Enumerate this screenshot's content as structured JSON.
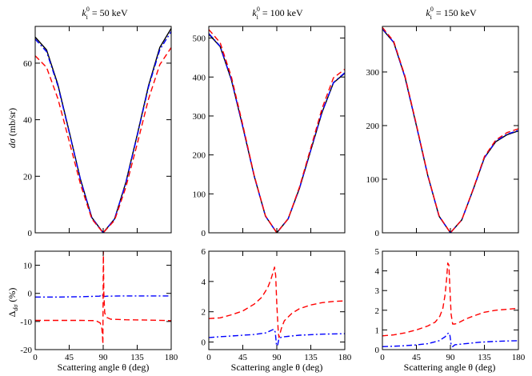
{
  "titles": [
    {
      "sym": "k",
      "sub": "i",
      "sup": "0",
      "text": " = 50 keV"
    },
    {
      "sym": "k",
      "sub": "i",
      "sup": "0",
      "text": " = 100 keV"
    },
    {
      "sym": "k",
      "sub": "i",
      "sup": "0",
      "text": " = 150 keV"
    }
  ],
  "ylabel_top": {
    "sym": "dσ",
    "unit": " (mb/sr)"
  },
  "ylabel_bottom": {
    "sym": "Δ",
    "sub": "dσ",
    "unit": " (%)"
  },
  "xlabel": "Scattering angle θ (deg)",
  "colors": {
    "solid": "#000000",
    "dashed": "#ff0000",
    "dashdot": "#0000ff"
  },
  "chart_data": [
    {
      "type": "line",
      "panel": "top-left",
      "xlim": [
        0,
        180
      ],
      "ylim": [
        0,
        73
      ],
      "xticks": [
        0,
        45,
        90,
        135,
        180
      ],
      "yticks": [
        0,
        20,
        40,
        60
      ],
      "series": [
        {
          "style": "solid",
          "x": [
            0,
            15,
            30,
            45,
            60,
            75,
            90,
            105,
            120,
            135,
            150,
            165,
            180
          ],
          "y": [
            69.2,
            64.7,
            52.5,
            35.8,
            18.8,
            5.4,
            0,
            4.9,
            17.8,
            34.6,
            52.1,
            65.6,
            72.3
          ]
        },
        {
          "style": "dashed",
          "x": [
            0,
            15,
            30,
            45,
            60,
            75,
            90,
            105,
            120,
            135,
            150,
            165,
            180
          ],
          "y": [
            62.6,
            58.5,
            47.5,
            32.4,
            17.1,
            4.9,
            0,
            4.4,
            16.1,
            31.4,
            47.4,
            59.5,
            65.5
          ]
        },
        {
          "style": "dashdot",
          "x": [
            0,
            15,
            30,
            45,
            60,
            75,
            90,
            105,
            120,
            135,
            150,
            165,
            180
          ],
          "y": [
            68.5,
            64.1,
            52.0,
            35.5,
            18.7,
            5.3,
            0,
            4.9,
            17.6,
            34.3,
            51.6,
            64.8,
            71.2
          ]
        }
      ]
    },
    {
      "type": "line",
      "panel": "top-middle",
      "xlim": [
        0,
        180
      ],
      "ylim": [
        0,
        530
      ],
      "xticks": [
        0,
        45,
        90,
        135,
        180
      ],
      "yticks": [
        0,
        100,
        200,
        300,
        400,
        500
      ],
      "series": [
        {
          "style": "solid",
          "x": [
            0,
            15,
            30,
            45,
            60,
            75,
            90,
            105,
            120,
            135,
            150,
            165,
            180
          ],
          "y": [
            510,
            478,
            392,
            272,
            146,
            43,
            0,
            36,
            114,
            212,
            310,
            385,
            410
          ]
        },
        {
          "style": "dashed",
          "x": [
            0,
            15,
            30,
            45,
            60,
            75,
            90,
            105,
            120,
            135,
            150,
            165,
            180
          ],
          "y": [
            522,
            488,
            400,
            277,
            148,
            44,
            0,
            36,
            117,
            218,
            320,
            398,
            420
          ]
        },
        {
          "style": "dashdot",
          "x": [
            0,
            15,
            30,
            45,
            60,
            75,
            90,
            105,
            120,
            135,
            150,
            165,
            180
          ],
          "y": [
            512,
            479,
            393,
            272,
            146,
            43,
            0,
            36,
            114,
            213,
            311,
            386,
            411
          ]
        }
      ]
    },
    {
      "type": "line",
      "panel": "top-right",
      "xlim": [
        0,
        180
      ],
      "ylim": [
        0,
        385
      ],
      "xticks": [
        0,
        45,
        90,
        135,
        180
      ],
      "yticks": [
        0,
        100,
        200,
        300
      ],
      "series": [
        {
          "style": "solid",
          "x": [
            0,
            15,
            30,
            45,
            60,
            75,
            90,
            105,
            120,
            135,
            150,
            165,
            180
          ],
          "y": [
            380,
            355,
            290,
            200,
            107,
            31,
            0,
            24,
            80,
            140,
            170,
            183,
            190
          ]
        },
        {
          "style": "dashed",
          "x": [
            0,
            15,
            30,
            45,
            60,
            75,
            90,
            105,
            120,
            135,
            150,
            165,
            180
          ],
          "y": [
            383,
            357,
            292,
            202,
            108,
            32,
            0,
            24,
            81,
            142,
            173,
            187,
            194
          ]
        },
        {
          "style": "dashdot",
          "x": [
            0,
            15,
            30,
            45,
            60,
            75,
            90,
            105,
            120,
            135,
            150,
            165,
            180
          ],
          "y": [
            381,
            355,
            290,
            200,
            107,
            31,
            0,
            24,
            80,
            140,
            171,
            184,
            191
          ]
        }
      ]
    },
    {
      "type": "line",
      "panel": "bottom-left",
      "xlim": [
        0,
        180
      ],
      "ylim": [
        -20,
        15
      ],
      "xticks": [
        0,
        45,
        90,
        135,
        180
      ],
      "yticks": [
        -20,
        -10,
        0,
        10
      ],
      "series": [
        {
          "style": "dashed",
          "x": [
            0,
            30,
            60,
            80,
            86,
            88,
            89,
            89.6,
            90.2,
            90.8,
            92,
            95,
            100,
            120,
            150,
            180
          ],
          "y": [
            -9.6,
            -9.6,
            -9.6,
            -9.7,
            -10.5,
            -12,
            -15,
            -18,
            15,
            0,
            -7,
            -8.6,
            -9.2,
            -9.4,
            -9.5,
            -9.7
          ]
        },
        {
          "style": "dashdot",
          "x": [
            0,
            30,
            60,
            85,
            88,
            89,
            90,
            91,
            92,
            95,
            120,
            150,
            180
          ],
          "y": [
            -1.3,
            -1.3,
            -1.2,
            -1.0,
            -0.7,
            -0.4,
            -1.6,
            -1.0,
            -1.1,
            -1.0,
            -0.9,
            -0.9,
            -0.9
          ]
        }
      ]
    },
    {
      "type": "line",
      "panel": "bottom-middle",
      "xlim": [
        0,
        180
      ],
      "ylim": [
        -0.5,
        6
      ],
      "xticks": [
        0,
        45,
        90,
        135,
        180
      ],
      "yticks": [
        0,
        2,
        4,
        6
      ],
      "series": [
        {
          "style": "dashed",
          "x": [
            0,
            15,
            30,
            45,
            60,
            70,
            78,
            82,
            85,
            87,
            88.5,
            90,
            92,
            93,
            96,
            100,
            110,
            120,
            135,
            150,
            165,
            180
          ],
          "y": [
            1.55,
            1.6,
            1.8,
            2.05,
            2.5,
            2.95,
            3.6,
            4.1,
            4.6,
            4.95,
            4.4,
            2.5,
            0.6,
            0.3,
            0.9,
            1.4,
            1.9,
            2.2,
            2.45,
            2.6,
            2.68,
            2.72
          ]
        },
        {
          "style": "dashdot",
          "x": [
            0,
            15,
            30,
            45,
            60,
            75,
            82,
            86,
            88,
            89.5,
            91,
            92.5,
            95,
            100,
            120,
            150,
            180
          ],
          "y": [
            0.3,
            0.35,
            0.4,
            0.45,
            0.5,
            0.6,
            0.75,
            0.85,
            0.65,
            -0.15,
            -0.25,
            0.15,
            0.3,
            0.35,
            0.45,
            0.52,
            0.55
          ]
        }
      ]
    },
    {
      "type": "line",
      "panel": "bottom-right",
      "xlim": [
        0,
        180
      ],
      "ylim": [
        0,
        5
      ],
      "xticks": [
        0,
        45,
        90,
        135,
        180
      ],
      "yticks": [
        0,
        1,
        2,
        3,
        4,
        5
      ],
      "series": [
        {
          "style": "dashed",
          "x": [
            0,
            15,
            30,
            45,
            60,
            70,
            76,
            80,
            83,
            85,
            86.5,
            88,
            89.5,
            91,
            93,
            96,
            100,
            110,
            120,
            135,
            150,
            165,
            180
          ],
          "y": [
            0.7,
            0.75,
            0.85,
            1.0,
            1.2,
            1.4,
            1.7,
            2.1,
            2.8,
            3.6,
            4.4,
            4.3,
            3.0,
            1.8,
            1.3,
            1.3,
            1.35,
            1.55,
            1.7,
            1.9,
            2.0,
            2.05,
            2.1
          ]
        },
        {
          "style": "dashdot",
          "x": [
            0,
            15,
            30,
            45,
            60,
            75,
            83,
            86,
            88,
            89.5,
            91,
            93,
            96,
            110,
            130,
            150,
            165,
            180
          ],
          "y": [
            0.15,
            0.17,
            0.2,
            0.24,
            0.3,
            0.45,
            0.65,
            0.8,
            0.85,
            0.7,
            0.25,
            0.15,
            0.25,
            0.3,
            0.38,
            0.42,
            0.44,
            0.45
          ]
        }
      ]
    }
  ]
}
